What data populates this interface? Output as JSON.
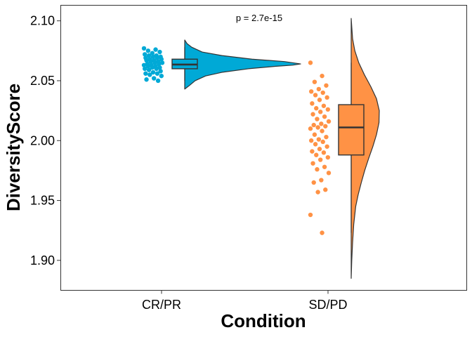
{
  "chart_data": {
    "type": "raincloud",
    "xlabel": "Condition",
    "ylabel": "DiversityScore",
    "ylim": [
      1.875,
      2.113
    ],
    "y_ticks": [
      1.9,
      1.95,
      2.0,
      2.05,
      2.1
    ],
    "y_tick_labels": [
      "1.90",
      "1.95",
      "2.00",
      "2.05",
      "2.10"
    ],
    "annotation": "p = 2.7e-15",
    "groups": [
      {
        "category": "CR/PR",
        "color": "#00A9D6",
        "box": {
          "q1": 2.06,
          "median": 2.0635,
          "q3": 2.068,
          "whisker_low": 2.05,
          "whisker_high": 2.078
        },
        "density": {
          "y": [
            2.043,
            2.046,
            2.05,
            2.054,
            2.057,
            2.06,
            2.062,
            2.063,
            2.064,
            2.066,
            2.068,
            2.071,
            2.074,
            2.078,
            2.081,
            2.084
          ],
          "d": [
            0,
            0.04,
            0.09,
            0.18,
            0.32,
            0.55,
            0.78,
            0.93,
            1.0,
            0.86,
            0.58,
            0.32,
            0.15,
            0.06,
            0.02,
            0
          ]
        },
        "points": [
          2.077,
          2.076,
          2.075,
          2.074,
          2.073,
          2.072,
          2.071,
          2.071,
          2.07,
          2.07,
          2.069,
          2.069,
          2.068,
          2.068,
          2.067,
          2.067,
          2.066,
          2.066,
          2.065,
          2.065,
          2.064,
          2.064,
          2.063,
          2.063,
          2.062,
          2.062,
          2.061,
          2.061,
          2.06,
          2.06,
          2.059,
          2.058,
          2.057,
          2.056,
          2.056,
          2.055,
          2.054,
          2.052,
          2.051,
          2.05
        ]
      },
      {
        "category": "SD/PD",
        "color": "#FF9245",
        "box": {
          "q1": 1.988,
          "median": 2.011,
          "q3": 2.03,
          "whisker_low": 1.923,
          "whisker_high": 2.065
        },
        "density": {
          "y": [
            1.885,
            1.9,
            1.915,
            1.93,
            1.945,
            1.955,
            1.965,
            1.975,
            1.985,
            1.995,
            2.005,
            2.015,
            2.025,
            2.035,
            2.045,
            2.055,
            2.065,
            2.075,
            2.085,
            2.095,
            2.102
          ],
          "d": [
            0,
            0.02,
            0.05,
            0.09,
            0.16,
            0.25,
            0.36,
            0.48,
            0.62,
            0.77,
            0.9,
            0.99,
            1.0,
            0.9,
            0.7,
            0.47,
            0.27,
            0.13,
            0.05,
            0.02,
            0
          ]
        },
        "points": [
          2.065,
          2.054,
          2.049,
          2.046,
          2.043,
          2.041,
          2.04,
          2.038,
          2.036,
          2.034,
          2.031,
          2.029,
          2.027,
          2.026,
          2.024,
          2.022,
          2.02,
          2.018,
          2.016,
          2.014,
          2.013,
          2.012,
          2.011,
          2.01,
          2.008,
          2.005,
          2.003,
          2.001,
          2.0,
          1.999,
          1.997,
          1.995,
          1.993,
          1.991,
          1.99,
          1.988,
          1.986,
          1.984,
          1.981,
          1.978,
          1.976,
          1.973,
          1.967,
          1.965,
          1.959,
          1.957,
          1.938,
          1.923
        ]
      }
    ]
  }
}
